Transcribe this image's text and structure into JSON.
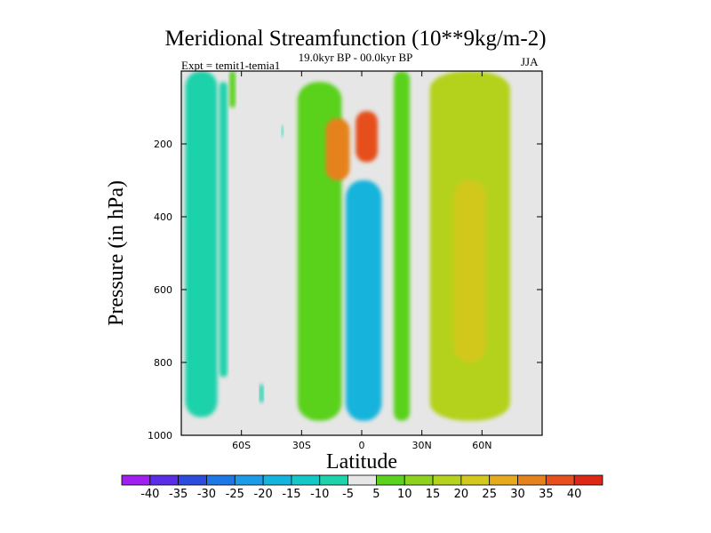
{
  "chart_data": {
    "type": "heatmap",
    "title": "Meridional Streamfunction (10**9kg/m-2)",
    "subtitle": "19.0kyr BP - 00.0kyr BP",
    "left_annotation": "Expt = temit1-temia1",
    "right_annotation": "JJA",
    "xlabel": "Latitude",
    "ylabel": "Pressure (in hPa)",
    "xlim": [
      -90,
      90
    ],
    "ylim": [
      1000,
      0
    ],
    "x_ticks": [
      {
        "value": -60,
        "label": "60S"
      },
      {
        "value": -30,
        "label": "30S"
      },
      {
        "value": 0,
        "label": "0"
      },
      {
        "value": 30,
        "label": "30N"
      },
      {
        "value": 60,
        "label": "60N"
      }
    ],
    "y_ticks": [
      {
        "value": 200,
        "label": "200"
      },
      {
        "value": 400,
        "label": "400"
      },
      {
        "value": 600,
        "label": "600"
      },
      {
        "value": 800,
        "label": "800"
      },
      {
        "value": 1000,
        "label": "1000"
      }
    ],
    "colorbar": {
      "levels": [
        "-40",
        "-35",
        "-30",
        "-25",
        "-20",
        "-15",
        "-10",
        "-5",
        "5",
        "10",
        "15",
        "20",
        "25",
        "30",
        "35",
        "40"
      ],
      "colors": [
        "#a020f0",
        "#5a2ee6",
        "#2d4bdc",
        "#1e78e6",
        "#1e9be6",
        "#14b4dc",
        "#14c8c8",
        "#1ed2aa",
        "#e6e6e6",
        "#5ad21e",
        "#8cd21e",
        "#b4d21e",
        "#d2c81e",
        "#e6aa1e",
        "#e6821e",
        "#e6501e",
        "#dc2814"
      ]
    },
    "background_color": "#e6e6e6",
    "regions": [
      {
        "name": "southern-high-lat-negative",
        "value": -10,
        "lat": [
          -88,
          -72
        ],
        "pressure": [
          0,
          950
        ]
      },
      {
        "name": "sh-mid-negative-band",
        "value": -10,
        "lat": [
          -71,
          -67
        ],
        "pressure": [
          30,
          840
        ]
      },
      {
        "name": "sh-high-positive-strip",
        "value": 5,
        "lat": [
          -66,
          -63
        ],
        "pressure": [
          0,
          100
        ]
      },
      {
        "name": "sh-subtropical-positive",
        "value": 5,
        "lat": [
          -32,
          -10
        ],
        "pressure": [
          30,
          960
        ]
      },
      {
        "name": "sh-upper-core",
        "value": 30,
        "lat": [
          -18,
          -6
        ],
        "pressure": [
          130,
          300
        ]
      },
      {
        "name": "equatorial-upper-core",
        "value": 35,
        "lat": [
          -3,
          8
        ],
        "pressure": [
          110,
          250
        ]
      },
      {
        "name": "equatorial-negative-cell",
        "value": -20,
        "lat": [
          -8,
          10
        ],
        "pressure": [
          300,
          960
        ]
      },
      {
        "name": "nh-tropical-positive-strip",
        "value": 5,
        "lat": [
          16,
          24
        ],
        "pressure": [
          0,
          960
        ]
      },
      {
        "name": "nh-midlat-positive",
        "value": 15,
        "lat": [
          34,
          74
        ],
        "pressure": [
          0,
          960
        ]
      },
      {
        "name": "nh-midlat-core",
        "value": 20,
        "lat": [
          46,
          62
        ],
        "pressure": [
          300,
          800
        ]
      },
      {
        "name": "sh-small-patch",
        "value": -10,
        "lat": [
          -40,
          -39
        ],
        "pressure": [
          150,
          180
        ]
      },
      {
        "name": "sh-low-patch",
        "value": -10,
        "lat": [
          -51,
          -49
        ],
        "pressure": [
          860,
          910
        ]
      }
    ]
  }
}
